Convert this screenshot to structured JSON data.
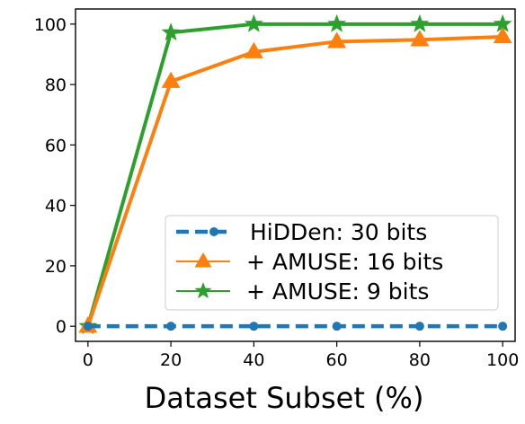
{
  "chart_data": {
    "type": "line",
    "xlabel": "Dataset Subset (%)",
    "ylabel": "",
    "title": "",
    "xlim": [
      -3,
      103
    ],
    "ylim": [
      -5,
      105
    ],
    "xticks": [
      0,
      20,
      40,
      60,
      80,
      100
    ],
    "yticks": [
      0,
      20,
      40,
      60,
      80,
      100
    ],
    "grid": false,
    "legend": "lower-right",
    "series": [
      {
        "name": "HiDDen: 30 bits",
        "x": [
          0,
          20,
          40,
          60,
          80,
          100
        ],
        "y": [
          0,
          0,
          0,
          0,
          0,
          0
        ],
        "color": "#1f77b4",
        "style": "dashed",
        "marker": "circle"
      },
      {
        "name": "+ AMUSE: 16 bits",
        "x": [
          0,
          20,
          40,
          60,
          80,
          100
        ],
        "y": [
          0,
          81,
          90.8,
          94.2,
          94.8,
          95.8
        ],
        "color": "#ff7f0e",
        "style": "solid",
        "marker": "triangle"
      },
      {
        "name": "+ AMUSE: 9 bits",
        "x": [
          0,
          20,
          40,
          60,
          80,
          100
        ],
        "y": [
          0,
          97.2,
          100,
          100,
          100,
          100
        ],
        "color": "#2ca02c",
        "style": "solid",
        "marker": "star"
      }
    ]
  }
}
